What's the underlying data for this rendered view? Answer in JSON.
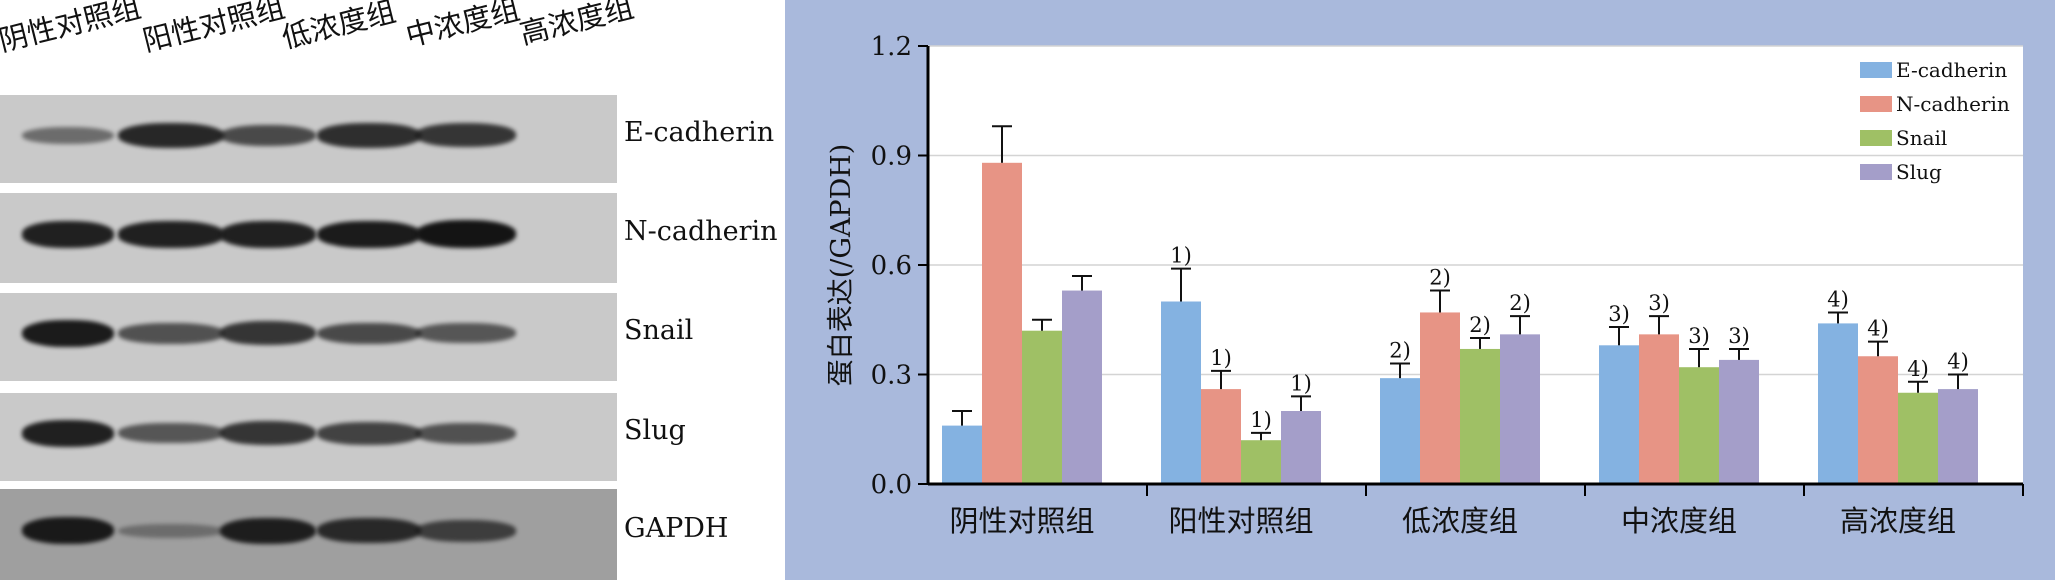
{
  "blot": {
    "column_labels": [
      "阴性对照组",
      "阳性对照组",
      "低浓度组",
      "中浓度组",
      "高浓度组"
    ],
    "proteins": [
      {
        "label": "E-cadherin",
        "intensity": [
          0.35,
          0.85,
          0.6,
          0.8,
          0.75
        ]
      },
      {
        "label": "N-cadherin",
        "intensity": [
          0.9,
          0.9,
          0.9,
          0.95,
          1.0
        ]
      },
      {
        "label": "Snail",
        "intensity": [
          0.95,
          0.55,
          0.75,
          0.6,
          0.5
        ]
      },
      {
        "label": "Slug",
        "intensity": [
          0.9,
          0.5,
          0.75,
          0.65,
          0.55
        ]
      },
      {
        "label": "GAPDH",
        "intensity": [
          0.95,
          0.15,
          0.9,
          0.8,
          0.6
        ]
      }
    ],
    "colors": {
      "background": "#c9c9c9",
      "band": "#141414",
      "gapdh_background": "#9f9f9f"
    }
  },
  "chart_data": {
    "type": "bar",
    "categories": [
      "阴性对照组",
      "阳性对照组",
      "低浓度组",
      "中浓度组",
      "高浓度组"
    ],
    "ylabel": "蛋白表达(/GAPDH)",
    "ylim": [
      0,
      1.2
    ],
    "yticks": [
      "0.0",
      "0.3",
      "0.6",
      "0.9",
      "1.2"
    ],
    "grid": true,
    "legend_position": "top-right",
    "series": [
      {
        "name": "E-cadherin",
        "color": "#84b2e1",
        "values": [
          0.16,
          0.5,
          0.29,
          0.38,
          0.44
        ],
        "errors": [
          0.04,
          0.09,
          0.04,
          0.05,
          0.03
        ],
        "labels": [
          "",
          "1)",
          "2)",
          "3)",
          "4)"
        ]
      },
      {
        "name": "N-cadherin",
        "color": "#e79485",
        "values": [
          0.88,
          0.26,
          0.47,
          0.41,
          0.35
        ],
        "errors": [
          0.1,
          0.05,
          0.06,
          0.05,
          0.04
        ],
        "labels": [
          "",
          "1)",
          "2)",
          "3)",
          "4)"
        ]
      },
      {
        "name": "Snail",
        "color": "#9fc065",
        "values": [
          0.42,
          0.12,
          0.37,
          0.32,
          0.25
        ],
        "errors": [
          0.03,
          0.02,
          0.03,
          0.05,
          0.03
        ],
        "labels": [
          "",
          "1)",
          "2)",
          "3)",
          "4)"
        ]
      },
      {
        "name": "Slug",
        "color": "#a49ec9",
        "values": [
          0.53,
          0.2,
          0.41,
          0.34,
          0.26
        ],
        "errors": [
          0.04,
          0.04,
          0.05,
          0.03,
          0.04
        ],
        "labels": [
          "",
          "1)",
          "2)",
          "3)",
          "4)"
        ]
      }
    ],
    "colors": {
      "panel_background": "#a9b9dc",
      "plot_background": "#ffffff",
      "axis": "#000000",
      "grid": "#d4d4d4"
    }
  }
}
